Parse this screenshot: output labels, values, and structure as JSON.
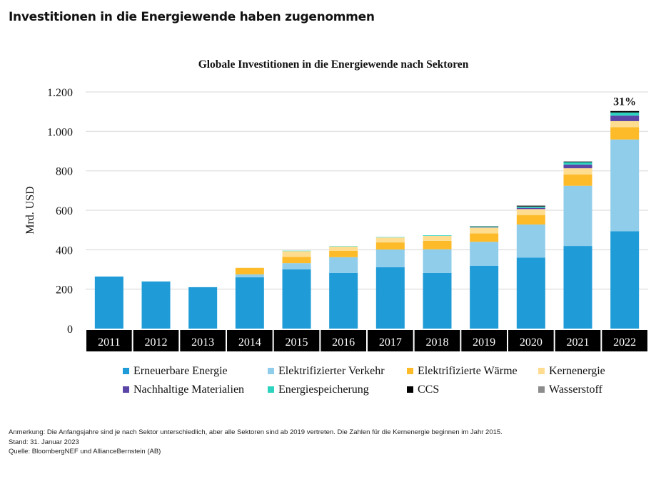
{
  "headline": "Investitionen in die Energiewende haben zugenommen",
  "chart_data": {
    "type": "bar",
    "stacked": true,
    "title": "Globale Investitionen in die Energiewende nach Sektoren",
    "ylabel": "Mrd. USD",
    "xlabel": "",
    "ylim": [
      0,
      1200
    ],
    "yticks": [
      0,
      200,
      400,
      600,
      800,
      1000,
      1200
    ],
    "ytick_labels": [
      "0",
      "200",
      "400",
      "600",
      "800",
      "1.000",
      "1.200"
    ],
    "grid": true,
    "legend_position": "bottom",
    "categories": [
      "2011",
      "2012",
      "2013",
      "2014",
      "2015",
      "2016",
      "2017",
      "2018",
      "2019",
      "2020",
      "2021",
      "2022"
    ],
    "series": [
      {
        "name": "Erneuerbare Energie",
        "color": "#1f9bd7",
        "values": [
          264,
          239,
          210,
          260,
          300,
          282,
          311,
          282,
          319,
          360,
          419,
          494
        ]
      },
      {
        "name": "Elektrifizierter Verkehr",
        "color": "#8fcdeb",
        "values": [
          0,
          0,
          0,
          15,
          32,
          80,
          90,
          120,
          121,
          168,
          305,
          465
        ]
      },
      {
        "name": "Elektrifizierte Wärme",
        "color": "#fdbb2a",
        "values": [
          0,
          0,
          0,
          33,
          32,
          32,
          36,
          43,
          43,
          48,
          58,
          62
        ]
      },
      {
        "name": "Kernenergie",
        "color": "#fedd90",
        "values": [
          0,
          0,
          0,
          0,
          29,
          22,
          25,
          25,
          29,
          30,
          31,
          31
        ]
      },
      {
        "name": "Nachhaltige Materialien",
        "color": "#5b45a6",
        "values": [
          0,
          0,
          0,
          0,
          0,
          0,
          0,
          0,
          2,
          6,
          19,
          28
        ]
      },
      {
        "name": "Energiespeicherung",
        "color": "#2ed3c0",
        "values": [
          0,
          0,
          0,
          0,
          2,
          2,
          2,
          3,
          4,
          6,
          12,
          16
        ]
      },
      {
        "name": "CCS",
        "color": "#000000",
        "values": [
          0,
          0,
          0,
          0,
          0,
          0,
          0,
          0,
          1,
          3,
          3,
          7
        ]
      },
      {
        "name": "Wasserstoff",
        "color": "#8c8c8c",
        "values": [
          0,
          0,
          0,
          0,
          0,
          0,
          0,
          0,
          1,
          4,
          0,
          1
        ]
      }
    ],
    "annotations": [
      {
        "category": "2022",
        "text": "31%"
      }
    ]
  },
  "notes": {
    "remark": "Anmerkung: Die Anfangsjahre sind je nach Sektor unterschiedlich, aber alle Sektoren sind ab 2019 vertreten. Die Zahlen für die Kernenergie beginnen im Jahr 2015.",
    "date": "Stand: 31. Januar 2023",
    "source": "Quelle: BloombergNEF und AllianceBernstein (AB)"
  }
}
